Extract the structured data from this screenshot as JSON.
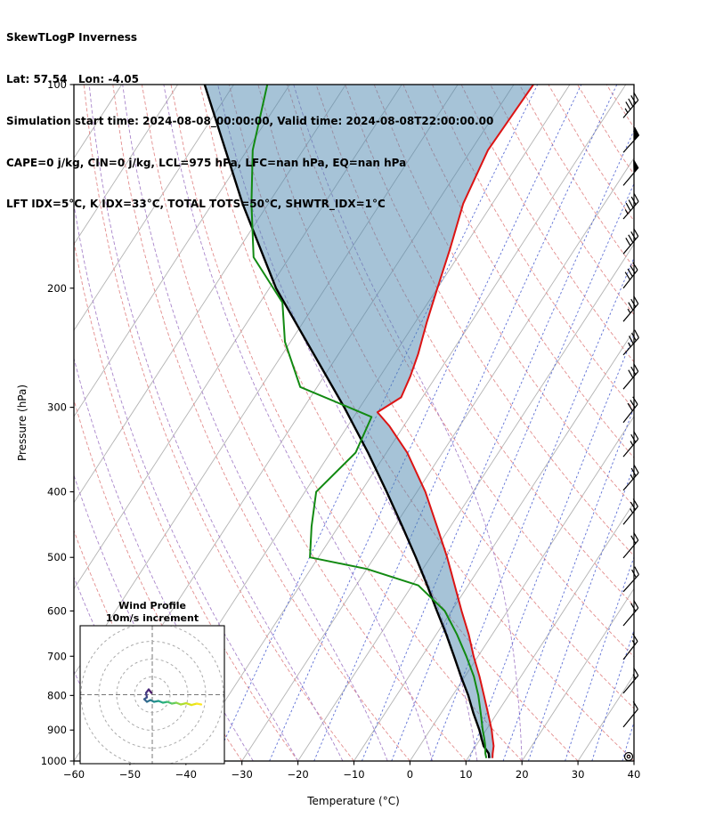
{
  "header": {
    "title": "SkewTLogP Inverness",
    "location": "Lat: 57.54   Lon: -4.05",
    "times": "Simulation start time: 2024-08-08_00:00:00, Valid time: 2024-08-08T22:00:00.00",
    "indices1": "CAPE=0 j/kg, CIN=0 j/kg, LCL=975 hPa, LFC=nan hPa, EQ=nan hPa",
    "indices2": "LFT IDX=5°C, K IDX=33°C, TOTAL TOTS=50°C, SHWTR_IDX=1°C"
  },
  "chart_data": {
    "type": "line",
    "subtype": "skewt_logp",
    "title": "SkewTLogP Inverness",
    "xlabel": "Temperature (°C)",
    "ylabel": "Pressure (hPa)",
    "x_ticks": [
      -60,
      -50,
      -40,
      -30,
      -20,
      -10,
      0,
      10,
      20,
      30,
      40
    ],
    "y_ticks": [
      100,
      200,
      300,
      400,
      500,
      600,
      700,
      800,
      900,
      1000
    ],
    "t_range": [
      -60,
      40
    ],
    "p_range": [
      100,
      1000
    ],
    "skew_slope": 0.65,
    "grid": true,
    "isotherms_c": {
      "start": -150,
      "end": 40,
      "step": 10
    },
    "dry_adiabats_theta_c": {
      "start": -40,
      "end": 180,
      "step": 10
    },
    "moist_adiabats_thetaw_c": [
      -52,
      -44,
      -36,
      -28,
      -20,
      -12,
      -4,
      4,
      12,
      20
    ],
    "mixing_ratio_g_kg": [
      0.2,
      0.5,
      1,
      2,
      3,
      5,
      8,
      12,
      16,
      24,
      32,
      44
    ],
    "series": [
      {
        "name": "temperature",
        "color": "#dc1414",
        "pressure_hpa": [
          990,
          975,
          950,
          925,
          900,
          850,
          800,
          750,
          700,
          650,
          600,
          550,
          500,
          450,
          400,
          350,
          320,
          305,
          290,
          270,
          250,
          225,
          200,
          175,
          150,
          125,
          100
        ],
        "temp_c": [
          14.4,
          13.9,
          13.2,
          12.1,
          11.0,
          8.4,
          5.6,
          2.6,
          -0.8,
          -4.2,
          -8.2,
          -12.4,
          -17.0,
          -22.4,
          -28.5,
          -36.3,
          -42.5,
          -46.3,
          -43.8,
          -44.6,
          -45.8,
          -47.9,
          -50.0,
          -52.3,
          -55.2,
          -57.0,
          -56.5
        ]
      },
      {
        "name": "dewpoint",
        "color": "#128a12",
        "pressure_hpa": [
          990,
          975,
          950,
          925,
          900,
          850,
          800,
          750,
          700,
          650,
          600,
          550,
          520,
          500,
          450,
          400,
          350,
          310,
          300,
          280,
          240,
          210,
          180,
          150,
          125,
          100
        ],
        "temp_c": [
          13.3,
          12.6,
          11.7,
          10.6,
          9.4,
          7.1,
          4.6,
          1.6,
          -2.1,
          -6.3,
          -11.2,
          -18.9,
          -30.0,
          -41.5,
          -44.8,
          -48.0,
          -45.5,
          -46.8,
          -52.0,
          -63.0,
          -71.0,
          -76.0,
          -86.4,
          -93.0,
          -99.0,
          -104.0
        ]
      },
      {
        "name": "parcel",
        "color": "#000000",
        "pressure_hpa": [
          990,
          975,
          950,
          925,
          900,
          850,
          800,
          750,
          700,
          650,
          600,
          550,
          500,
          450,
          400,
          350,
          300,
          250,
          200,
          150,
          100
        ],
        "temp_c": [
          13.8,
          13.2,
          11.4,
          10.1,
          8.8,
          5.8,
          2.8,
          -0.7,
          -4.3,
          -8.2,
          -12.6,
          -17.3,
          -22.6,
          -28.6,
          -35.4,
          -43.3,
          -52.8,
          -64.5,
          -78.8,
          -94.6,
          -115.2
        ]
      }
    ],
    "shade_between": [
      "parcel",
      "temperature"
    ],
    "shade_color": "#4d87b0",
    "shade_opacity": 0.5,
    "wind_barbs_kt": [
      [
        112,
        45,
        40
      ],
      [
        126,
        50,
        42
      ],
      [
        141,
        50,
        40
      ],
      [
        158,
        45,
        41
      ],
      [
        178,
        40,
        40
      ],
      [
        200,
        40,
        38
      ],
      [
        224,
        35,
        40
      ],
      [
        251,
        35,
        42
      ],
      [
        282,
        30,
        40
      ],
      [
        316,
        30,
        38
      ],
      [
        355,
        25,
        40
      ],
      [
        398,
        25,
        41
      ],
      [
        447,
        25,
        39
      ],
      [
        501,
        20,
        40
      ],
      [
        562,
        20,
        42
      ],
      [
        631,
        20,
        40
      ],
      [
        708,
        15,
        38
      ],
      [
        794,
        15,
        40
      ],
      [
        891,
        10,
        39
      ],
      [
        1000,
        0,
        0
      ]
    ],
    "colors": {
      "isotherm": "#b3b3b3",
      "dry_adiabat": "#e38d8d",
      "moist_adiabat": "#a985cb",
      "mixing_ratio": "#5d6fd5",
      "frame": "#000000"
    }
  },
  "hodograph": {
    "title": "Wind Profile",
    "subtitle": "10m/s increment",
    "ring_step_ms": 10,
    "rings_ms": [
      10,
      20,
      30,
      40
    ],
    "trace_u": [
      -0.5,
      -2,
      -3.5,
      -3,
      -4.5,
      -3,
      -1,
      1,
      3.5,
      6,
      8.5,
      11,
      13.5,
      16,
      19,
      22,
      25,
      27.5
    ],
    "trace_v": [
      1,
      3,
      1,
      -1.5,
      -2.5,
      -4,
      -3,
      -4,
      -3.5,
      -4.5,
      -4,
      -5,
      -4.5,
      -5.5,
      -4.8,
      -5.8,
      -5,
      -5.5
    ],
    "trace_colors": [
      "#440154",
      "#481467",
      "#472a7a",
      "#433e85",
      "#3d4f8a",
      "#35608d",
      "#2f708e",
      "#2a808e",
      "#25908d",
      "#21a187",
      "#2db27d",
      "#46c06f",
      "#65cb5e",
      "#89d548",
      "#aadc32",
      "#cae11f",
      "#e8e419",
      "#fde725"
    ]
  }
}
